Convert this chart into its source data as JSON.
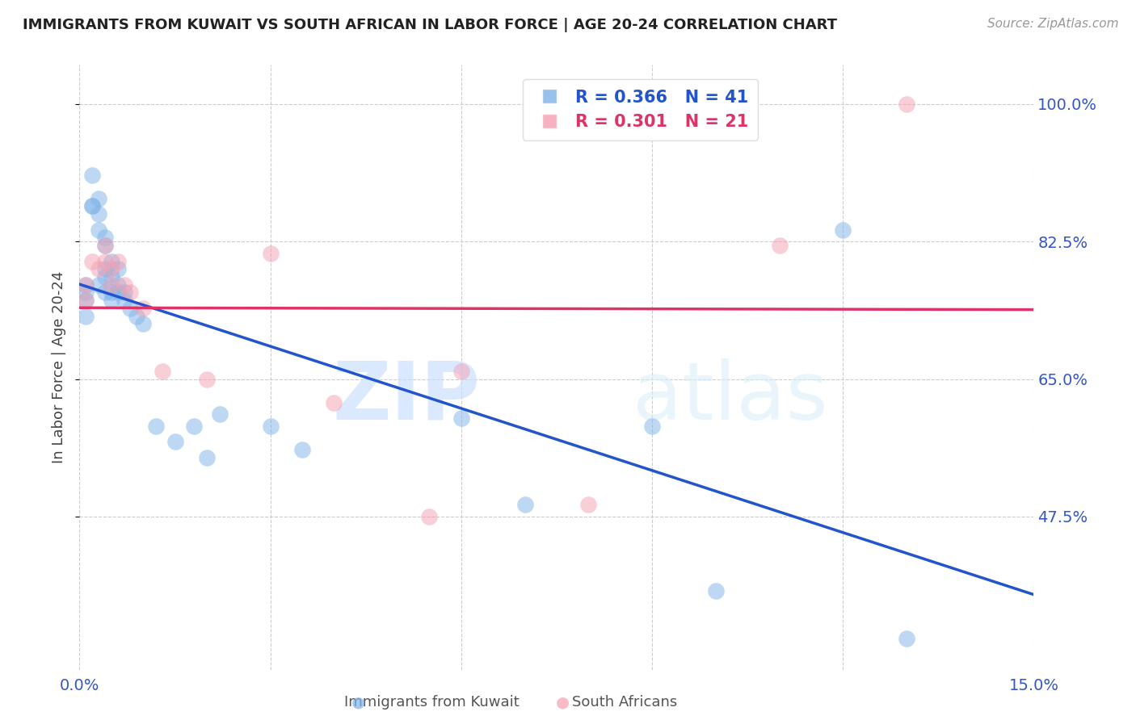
{
  "title": "IMMIGRANTS FROM KUWAIT VS SOUTH AFRICAN IN LABOR FORCE | AGE 20-24 CORRELATION CHART",
  "source": "Source: ZipAtlas.com",
  "ylabel": "In Labor Force | Age 20-24",
  "xlim": [
    0.0,
    0.15
  ],
  "ylim": [
    0.28,
    1.05
  ],
  "yticks": [
    0.475,
    0.65,
    0.825,
    1.0
  ],
  "ytick_labels": [
    "47.5%",
    "65.0%",
    "82.5%",
    "100.0%"
  ],
  "xticks": [
    0.0,
    0.03,
    0.06,
    0.09,
    0.12,
    0.15
  ],
  "xtick_labels": [
    "0.0%",
    "",
    "",
    "",
    "",
    "15.0%"
  ],
  "blue_color": "#7EB3E8",
  "pink_color": "#F4A0B0",
  "blue_line_color": "#2255CC",
  "pink_line_color": "#DD3366",
  "r_blue": 0.366,
  "n_blue": 41,
  "r_pink": 0.301,
  "n_pink": 21,
  "legend_label_blue": "Immigrants from Kuwait",
  "legend_label_pink": "South Africans",
  "blue_x": [
    0.001,
    0.001,
    0.001,
    0.001,
    0.002,
    0.002,
    0.002,
    0.003,
    0.003,
    0.003,
    0.003,
    0.004,
    0.004,
    0.004,
    0.004,
    0.004,
    0.005,
    0.005,
    0.005,
    0.005,
    0.006,
    0.006,
    0.006,
    0.007,
    0.007,
    0.008,
    0.009,
    0.01,
    0.012,
    0.015,
    0.018,
    0.02,
    0.022,
    0.03,
    0.035,
    0.06,
    0.07,
    0.09,
    0.1,
    0.12,
    0.13
  ],
  "blue_y": [
    0.77,
    0.76,
    0.75,
    0.73,
    0.91,
    0.87,
    0.87,
    0.88,
    0.86,
    0.84,
    0.77,
    0.83,
    0.82,
    0.79,
    0.78,
    0.76,
    0.8,
    0.78,
    0.76,
    0.75,
    0.79,
    0.77,
    0.76,
    0.76,
    0.75,
    0.74,
    0.73,
    0.72,
    0.59,
    0.57,
    0.59,
    0.55,
    0.605,
    0.59,
    0.56,
    0.6,
    0.49,
    0.59,
    0.38,
    0.84,
    0.32
  ],
  "pink_x": [
    0.001,
    0.001,
    0.002,
    0.003,
    0.004,
    0.004,
    0.005,
    0.005,
    0.006,
    0.007,
    0.008,
    0.01,
    0.013,
    0.02,
    0.03,
    0.04,
    0.055,
    0.06,
    0.08,
    0.11,
    0.13
  ],
  "pink_y": [
    0.77,
    0.75,
    0.8,
    0.79,
    0.82,
    0.8,
    0.79,
    0.77,
    0.8,
    0.77,
    0.76,
    0.74,
    0.66,
    0.65,
    0.81,
    0.62,
    0.475,
    0.66,
    0.49,
    0.82,
    1.0
  ],
  "watermark_zip": "ZIP",
  "watermark_atlas": "atlas",
  "axis_color": "#3355CC",
  "title_color": "#222222",
  "grid_color": "#CCCCCC"
}
